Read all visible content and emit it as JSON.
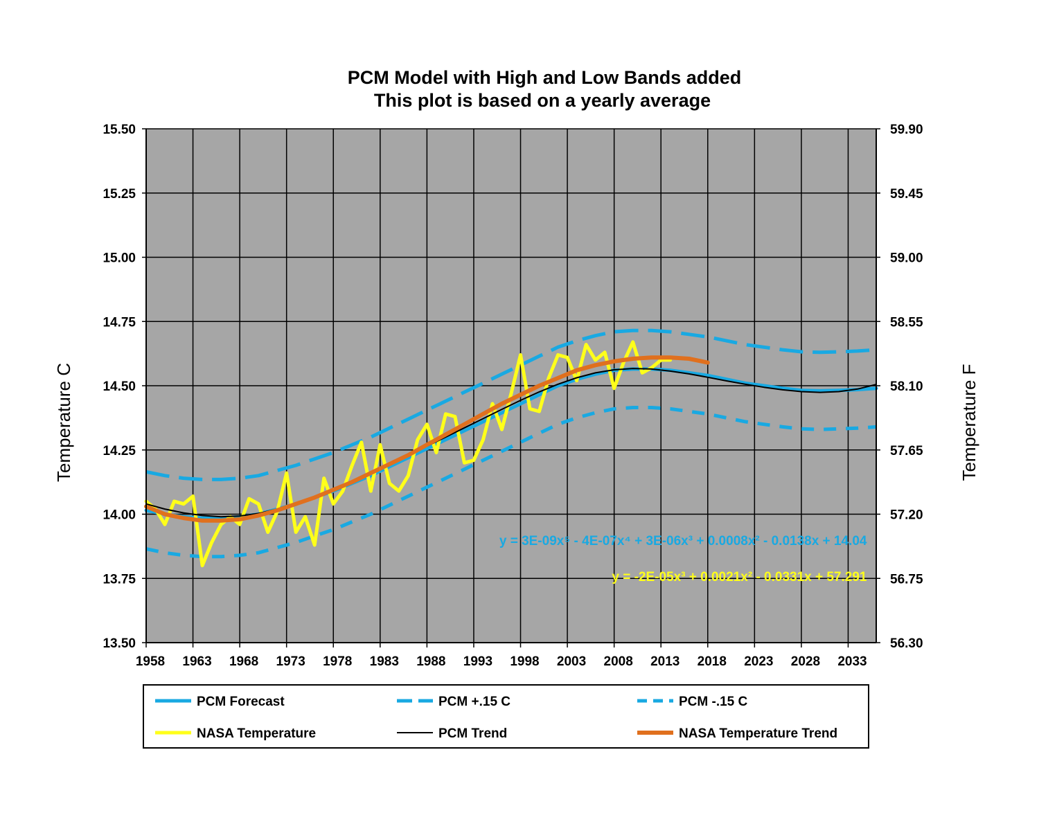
{
  "chart_data": {
    "type": "line",
    "title": [
      "PCM Model with High and Low Bands added",
      "This plot is based on a yearly average"
    ],
    "ylabel_left": "Temperature C",
    "ylabel_right": "Temperature F",
    "xlim": [
      1958,
      2036
    ],
    "ylim": [
      13.5,
      15.5
    ],
    "ylim_right": [
      56.3,
      59.9
    ],
    "x_ticks": [
      1958,
      1963,
      1968,
      1973,
      1978,
      1983,
      1988,
      1993,
      1998,
      2003,
      2008,
      2013,
      2018,
      2023,
      2028,
      2033
    ],
    "x_tick_labels": [
      "1958",
      "1963",
      "1968",
      "1973",
      "1978",
      "1983",
      "1988",
      "1993",
      "1998",
      "2003",
      "2008",
      "2013",
      "2018",
      "2023",
      "2028",
      "2033"
    ],
    "y_ticks_left": [
      13.5,
      13.75,
      14.0,
      14.25,
      14.5,
      14.75,
      15.0,
      15.25,
      15.5
    ],
    "y_tick_labels_left": [
      "13.50",
      "13.75",
      "14.00",
      "14.25",
      "14.50",
      "14.75",
      "15.00",
      "15.25",
      "15.50"
    ],
    "y_tick_labels_right": [
      "56.30",
      "56.75",
      "57.20",
      "57.65",
      "58.10",
      "58.55",
      "59.00",
      "59.45",
      "59.90"
    ],
    "grid": true,
    "plot_background": "#a6a6a6",
    "legend_position": "bottom",
    "equations": [
      {
        "text": "y = 3E-09x⁵ - 4E-07x⁴ + 3E-06x³ + 0.0008x² - 0.0138x + 14.04",
        "color": "#19a9e2",
        "x": 2035,
        "y": 13.88
      },
      {
        "text": "y = -2E-05x³ + 0.0021x² - 0.0331x + 57.291",
        "color": "#ffff1a",
        "x": 2035,
        "y": 13.74
      }
    ],
    "series": [
      {
        "name": "PCM Forecast",
        "color": "#19a9e2",
        "style": "solid",
        "width": 5,
        "x": [
          1958,
          1960,
          1962,
          1964,
          1966,
          1968,
          1970,
          1972,
          1974,
          1976,
          1978,
          1980,
          1982,
          1984,
          1986,
          1988,
          1990,
          1992,
          1994,
          1996,
          1998,
          2000,
          2002,
          2004,
          2006,
          2008,
          2010,
          2012,
          2014,
          2016,
          2018,
          2020,
          2022,
          2024,
          2026,
          2028,
          2030,
          2032,
          2034,
          2036
        ],
        "values": [
          14.015,
          14.0,
          13.99,
          13.985,
          13.985,
          13.99,
          14.0,
          14.02,
          14.04,
          14.065,
          14.09,
          14.12,
          14.15,
          14.185,
          14.22,
          14.255,
          14.29,
          14.325,
          14.36,
          14.395,
          14.43,
          14.465,
          14.5,
          14.525,
          14.545,
          14.56,
          14.565,
          14.565,
          14.56,
          14.55,
          14.54,
          14.525,
          14.51,
          14.5,
          14.49,
          14.482,
          14.48,
          14.482,
          14.485,
          14.49
        ]
      },
      {
        "name": "PCM +.15 C",
        "color": "#19a9e2",
        "style": "longdash",
        "width": 5,
        "x": [
          1958,
          1960,
          1962,
          1964,
          1966,
          1968,
          1970,
          1972,
          1974,
          1976,
          1978,
          1980,
          1982,
          1984,
          1986,
          1988,
          1990,
          1992,
          1994,
          1996,
          1998,
          2000,
          2002,
          2004,
          2006,
          2008,
          2010,
          2012,
          2014,
          2016,
          2018,
          2020,
          2022,
          2024,
          2026,
          2028,
          2030,
          2032,
          2034,
          2036
        ],
        "values": [
          14.165,
          14.15,
          14.14,
          14.135,
          14.135,
          14.14,
          14.15,
          14.17,
          14.19,
          14.215,
          14.24,
          14.27,
          14.3,
          14.335,
          14.37,
          14.405,
          14.44,
          14.475,
          14.51,
          14.545,
          14.58,
          14.615,
          14.65,
          14.675,
          14.695,
          14.71,
          14.715,
          14.715,
          14.71,
          14.7,
          14.69,
          14.675,
          14.66,
          14.65,
          14.64,
          14.632,
          14.63,
          14.632,
          14.635,
          14.64
        ]
      },
      {
        "name": "PCM -.15 C",
        "color": "#19a9e2",
        "style": "shortdash",
        "width": 5,
        "x": [
          1958,
          1960,
          1962,
          1964,
          1966,
          1968,
          1970,
          1972,
          1974,
          1976,
          1978,
          1980,
          1982,
          1984,
          1986,
          1988,
          1990,
          1992,
          1994,
          1996,
          1998,
          2000,
          2002,
          2004,
          2006,
          2008,
          2010,
          2012,
          2014,
          2016,
          2018,
          2020,
          2022,
          2024,
          2026,
          2028,
          2030,
          2032,
          2034,
          2036
        ],
        "values": [
          13.865,
          13.85,
          13.84,
          13.835,
          13.835,
          13.84,
          13.85,
          13.87,
          13.89,
          13.915,
          13.94,
          13.97,
          14.0,
          14.035,
          14.07,
          14.105,
          14.14,
          14.175,
          14.21,
          14.245,
          14.28,
          14.315,
          14.35,
          14.375,
          14.395,
          14.41,
          14.415,
          14.415,
          14.41,
          14.4,
          14.39,
          14.375,
          14.36,
          14.35,
          14.34,
          14.332,
          14.33,
          14.332,
          14.335,
          14.34
        ]
      },
      {
        "name": "NASA Temperature",
        "color": "#ffff1a",
        "style": "solid",
        "width": 5,
        "x": [
          1958,
          1959,
          1960,
          1961,
          1962,
          1963,
          1964,
          1965,
          1966,
          1967,
          1968,
          1969,
          1970,
          1971,
          1972,
          1973,
          1974,
          1975,
          1976,
          1977,
          1978,
          1979,
          1980,
          1981,
          1982,
          1983,
          1984,
          1985,
          1986,
          1987,
          1988,
          1989,
          1990,
          1991,
          1992,
          1993,
          1994,
          1995,
          1996,
          1997,
          1998,
          1999,
          2000,
          2001,
          2002,
          2003,
          2004,
          2005,
          2006,
          2007,
          2008,
          2009,
          2010,
          2011,
          2012,
          2013,
          2014
        ],
        "values": [
          14.05,
          14.02,
          13.96,
          14.05,
          14.04,
          14.07,
          13.8,
          13.89,
          13.96,
          13.99,
          13.96,
          14.06,
          14.04,
          13.93,
          14.01,
          14.16,
          13.93,
          13.99,
          13.88,
          14.14,
          14.04,
          14.09,
          14.19,
          14.28,
          14.09,
          14.27,
          14.12,
          14.09,
          14.15,
          14.29,
          14.35,
          14.24,
          14.39,
          14.38,
          14.2,
          14.21,
          14.29,
          14.43,
          14.33,
          14.47,
          14.62,
          14.41,
          14.4,
          14.53,
          14.62,
          14.61,
          14.52,
          14.66,
          14.6,
          14.63,
          14.49,
          14.59,
          14.67,
          14.55,
          14.57,
          14.6,
          14.6
        ]
      },
      {
        "name": "PCM Trend",
        "color": "#000000",
        "style": "solid",
        "width": 2,
        "x": [
          1958,
          1960,
          1962,
          1964,
          1966,
          1968,
          1970,
          1972,
          1974,
          1976,
          1978,
          1980,
          1982,
          1984,
          1986,
          1988,
          1990,
          1992,
          1994,
          1996,
          1998,
          2000,
          2002,
          2004,
          2006,
          2008,
          2010,
          2012,
          2014,
          2016,
          2018,
          2020,
          2022,
          2024,
          2026,
          2028,
          2030,
          2032,
          2034,
          2036
        ],
        "values": [
          14.04,
          14.02,
          14.005,
          13.995,
          13.99,
          13.993,
          14.003,
          14.02,
          14.042,
          14.068,
          14.096,
          14.127,
          14.16,
          14.195,
          14.23,
          14.265,
          14.3,
          14.336,
          14.372,
          14.408,
          14.443,
          14.476,
          14.506,
          14.531,
          14.55,
          14.562,
          14.567,
          14.565,
          14.557,
          14.546,
          14.533,
          14.519,
          14.506,
          14.494,
          14.484,
          14.477,
          14.474,
          14.477,
          14.487,
          14.505
        ]
      },
      {
        "name": "NASA Temperature Trend",
        "color": "#e0701e",
        "style": "solid",
        "width": 6,
        "x": [
          1958,
          1960,
          1962,
          1964,
          1966,
          1968,
          1970,
          1972,
          1974,
          1976,
          1978,
          1980,
          1982,
          1984,
          1986,
          1988,
          1990,
          1992,
          1994,
          1996,
          1998,
          2000,
          2002,
          2004,
          2006,
          2008,
          2010,
          2012,
          2014,
          2016,
          2018
        ],
        "values": [
          14.03,
          14.0,
          13.985,
          13.975,
          13.975,
          13.98,
          13.995,
          14.015,
          14.04,
          14.065,
          14.095,
          14.125,
          14.16,
          14.195,
          14.23,
          14.27,
          14.31,
          14.35,
          14.39,
          14.43,
          14.465,
          14.5,
          14.53,
          14.56,
          14.58,
          14.595,
          14.605,
          14.61,
          14.61,
          14.605,
          14.59
        ]
      }
    ]
  },
  "legend": {
    "items": [
      {
        "label": "PCM Forecast",
        "color": "#19a9e2",
        "style": "solid",
        "width": 5
      },
      {
        "label": "PCM +.15 C",
        "color": "#19a9e2",
        "style": "longdash",
        "width": 5
      },
      {
        "label": "PCM -.15 C",
        "color": "#19a9e2",
        "style": "shortdash",
        "width": 5
      },
      {
        "label": "NASA Temperature",
        "color": "#ffff1a",
        "style": "solid",
        "width": 5
      },
      {
        "label": "PCM Trend",
        "color": "#000000",
        "style": "solid",
        "width": 2
      },
      {
        "label": "NASA Temperature Trend",
        "color": "#e0701e",
        "style": "solid",
        "width": 6
      }
    ]
  }
}
